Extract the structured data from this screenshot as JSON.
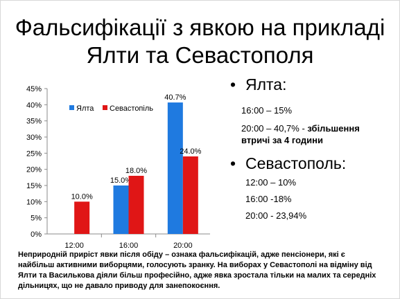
{
  "slide": {
    "title_line1": "Фальсифікації з явкою на прикладі",
    "title_line2": "Ялти та Севастополя"
  },
  "chart_data": {
    "type": "bar",
    "categories": [
      "12:00",
      "16:00",
      "20:00"
    ],
    "series": [
      {
        "name": "Ялта",
        "color": "#1f7ae0",
        "values": [
          null,
          15.0,
          40.7
        ],
        "labels": [
          "",
          "15.0%",
          "40.7%"
        ]
      },
      {
        "name": "Севастопіль",
        "color": "#e01616",
        "values": [
          10.0,
          18.0,
          24.0
        ],
        "labels": [
          "10.0%",
          "18.0%",
          "24.0%"
        ]
      }
    ],
    "ylim": [
      0,
      45
    ],
    "yticks": [
      "0%",
      "5%",
      "10%",
      "15%",
      "20%",
      "25%",
      "30%",
      "35%",
      "40%",
      "45%"
    ],
    "legend": "top-left",
    "grid": false
  },
  "bullets": {
    "yalta": {
      "marker": "•",
      "heading": "Ялта:",
      "line1": "16:00 – 15%",
      "line2_plain": "20:00 – 40,7% - ",
      "line2_bold": "збільшення",
      "line3_bold": "втричі за 4 години"
    },
    "sevastopol": {
      "marker": "•",
      "heading": "Севастополь:",
      "line1": "12:00 – 10%",
      "line2": "16:00 -18%",
      "line3": "20:00 - 23,94%"
    }
  },
  "note": {
    "line1": "Неприродній приріст явки після обіду – ознака фальсифікацій, адже пенсіонери, які є",
    "line2": "найбільш активними виборцями, голосують зранку. На виборах у Севастополі на відміну від",
    "line3": "Ялти та Василькова діяли більш професійно, адже явка зростала тільки на малих та середніх",
    "line4": "дільницях, що не давало приводу для занепокоєння."
  }
}
